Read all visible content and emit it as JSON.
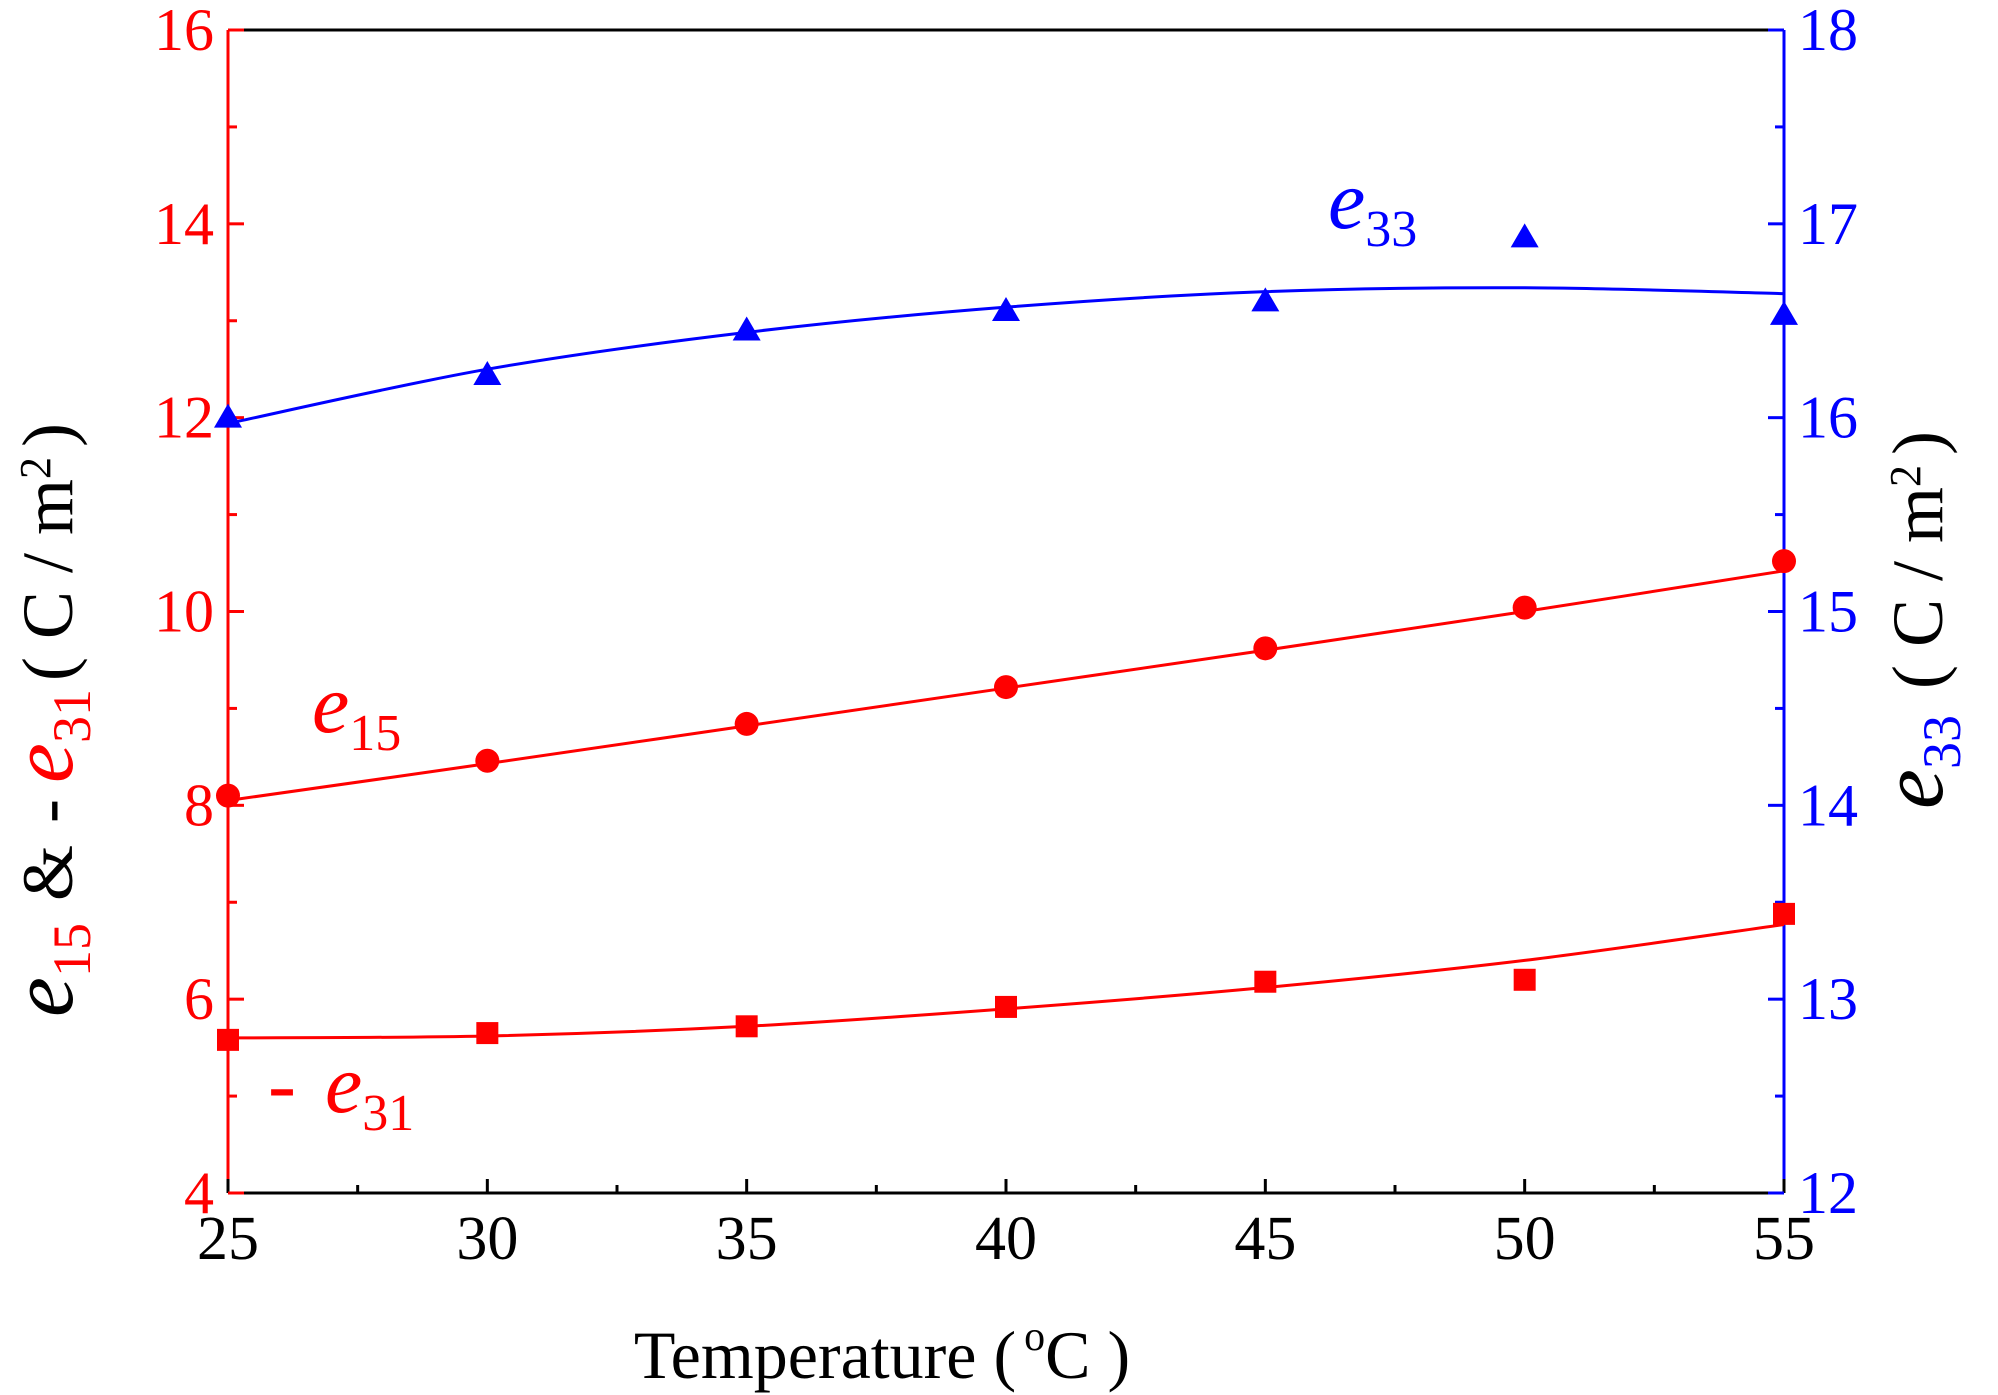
{
  "chart_data": {
    "type": "scatter",
    "x_axis": {
      "label": "Temperature ( °C )",
      "label_main": "Temperature (",
      "label_degree": "o",
      "label_unit": "C )",
      "range": [
        25,
        55
      ],
      "ticks": [
        25,
        30,
        35,
        40,
        45,
        50,
        55
      ]
    },
    "y_left_axis": {
      "label": "e15 & - e31 ( C / m2 )",
      "range": [
        4,
        16
      ],
      "ticks": [
        4,
        6,
        8,
        10,
        12,
        14,
        16
      ],
      "color": "#ff0000"
    },
    "y_right_axis": {
      "label": "e33 ( C / m2 )",
      "range": [
        12,
        18
      ],
      "ticks": [
        12,
        13,
        14,
        15,
        16,
        17,
        18
      ],
      "color": "#0000ff"
    },
    "labels": {
      "left_e": "e",
      "left_sub1": "15",
      "left_amp": "&",
      "left_minus": "-",
      "left_sub2": "31",
      "left_units": "( C / m",
      "left_units_sup": "2",
      "left_units_close": ")",
      "right_e": "e",
      "right_sub": "33",
      "right_units": "( C / m",
      "right_units_sup": "2",
      "right_units_close": ")"
    },
    "series": [
      {
        "name": "e15",
        "axis": "left",
        "marker": "circle",
        "color": "#ff0000",
        "annotation": {
          "main": "e",
          "sub": "15"
        },
        "x": [
          25,
          30,
          35,
          40,
          45,
          50,
          55
        ],
        "y": [
          8.1,
          8.46,
          8.84,
          9.22,
          9.62,
          10.04,
          10.52
        ],
        "fit": [
          8.05,
          8.43,
          8.82,
          9.21,
          9.6,
          10.0,
          10.42
        ]
      },
      {
        "name": "-e31",
        "axis": "left",
        "marker": "square",
        "color": "#ff0000",
        "annotation": {
          "prefix": "- ",
          "main": "e",
          "sub": "31"
        },
        "x": [
          25,
          30,
          35,
          40,
          45,
          50,
          55
        ],
        "y": [
          5.58,
          5.65,
          5.72,
          5.92,
          6.18,
          6.2,
          6.88
        ],
        "fit": [
          5.6,
          5.62,
          5.72,
          5.9,
          6.12,
          6.4,
          6.77
        ]
      },
      {
        "name": "e33",
        "axis": "right",
        "marker": "triangle",
        "color": "#0000ff",
        "annotation": {
          "main": "e",
          "sub": "33"
        },
        "x": [
          25,
          30,
          35,
          40,
          45,
          50,
          55
        ],
        "y": [
          16.0,
          16.22,
          16.45,
          16.55,
          16.6,
          16.93,
          16.53
        ],
        "fit": [
          15.97,
          16.25,
          16.44,
          16.57,
          16.65,
          16.67,
          16.64
        ]
      }
    ]
  }
}
